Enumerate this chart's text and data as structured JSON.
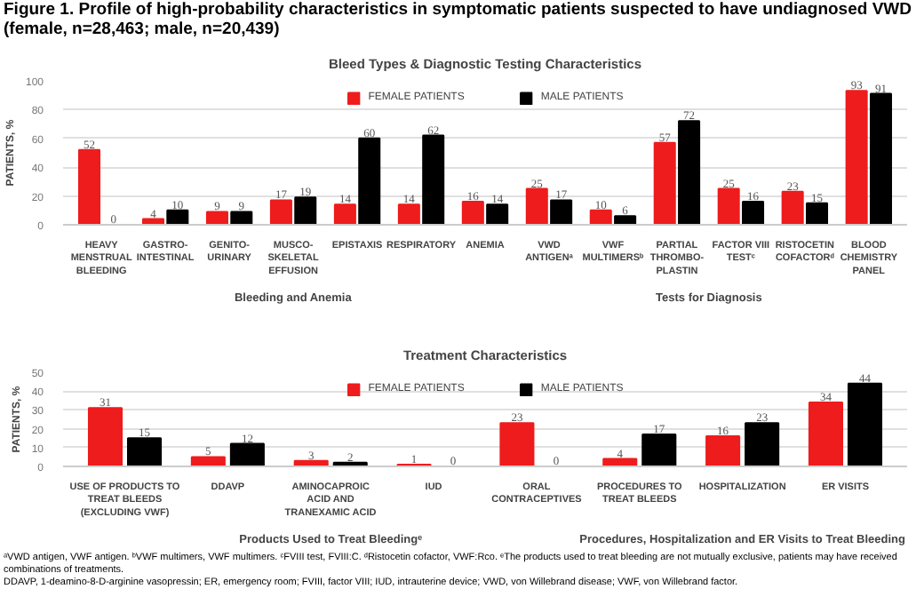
{
  "chart_data": [
    {
      "type": "bar",
      "title": "Bleed Types & Diagnostic Testing Characteristics",
      "ylabel": "PATIENTS, %",
      "categories": [
        "HEAVY\nMENSTRUAL\nBLEEDING",
        "GASTRO-\nINTESTINAL",
        "GENITO-\nURINARY",
        "MUSCO-\nSKELETAL\nEFFUSION",
        "EPISTAXIS",
        "RESPIRATORY",
        "ANEMIA",
        "VWD\nANTIGENᵃ",
        "VWF\nMULTIMERSᵇ",
        "PARTIAL\nTHROMBO-\nPLASTIN",
        "FACTOR VIII\nTESTᶜ",
        "RISTOCETIN\nCOFACTORᵈ",
        "BLOOD\nCHEMISTRY\nPANEL"
      ],
      "series": [
        {
          "name": "FEMALE PATIENTS",
          "color": "#ee1c1c",
          "values": [
            52,
            4,
            9,
            17,
            14,
            14,
            16,
            25,
            10,
            57,
            25,
            23,
            93
          ]
        },
        {
          "name": "MALE PATIENTS",
          "color": "#000000",
          "values": [
            0,
            10,
            9,
            19,
            60,
            62,
            14,
            17,
            6,
            72,
            16,
            15,
            91
          ]
        }
      ],
      "ylim": [
        0,
        100
      ],
      "yticks": [
        0,
        20,
        40,
        60,
        80,
        100
      ],
      "grid": "y",
      "legend": "top",
      "data_labels": true,
      "annotations": [
        "Figure 1. Profile of high-probability characteristics in symptomatic patients suspected to have undiagnosed VWD (female, n=28,463; male, n=20,439)",
        "Bleeding and Anemia",
        "Tests for Diagnosis"
      ]
    },
    {
      "type": "bar",
      "title": "Treatment Characteristics",
      "ylabel": "PATIENTS, %",
      "categories": [
        "USE OF PRODUCTS TO\nTREAT BLEEDS\n(EXCLUDING VWF)",
        "DDAVP",
        "AMINOCAPROIC\nACID AND\nTRANEXAMIC ACID",
        "IUD",
        "ORAL\nCONTRACEPTIVES",
        "PROCEDURES TO\nTREAT BLEEDS",
        "HOSPITALIZATION",
        "ER VISITS"
      ],
      "series": [
        {
          "name": "FEMALE PATIENTS",
          "color": "#ee1c1c",
          "values": [
            31,
            5,
            3,
            1,
            23,
            4,
            16,
            34
          ]
        },
        {
          "name": "MALE PATIENTS",
          "color": "#000000",
          "values": [
            15,
            12,
            2,
            0,
            0,
            17,
            23,
            44
          ]
        }
      ],
      "ylim": [
        0,
        50
      ],
      "yticks": [
        0,
        10,
        20,
        30,
        40,
        50
      ],
      "grid": "y",
      "legend": "top",
      "data_labels": true,
      "annotations": [
        "Products Used to Treat Bleedingᵉ",
        "Procedures, Hospitalization and ER Visits to Treat Bleeding",
        "ᵃVWD antigen, VWF antigen. ᵇVWF multimers, VWF multimers. ᶜFVIII test, FVIII:C. ᵈRistocetin cofactor, VWF:Rco. ᵉThe products used to treat bleeding are not mutually exclusive, patients may have received combinations of treatments.",
        "DDAVP, 1-deamino-8-D-arginine vasopressin; ER, emergency room; FVIII, factor VIII; IUD, intrauterine device; VWD, von Willebrand disease; VWF, von Willebrand factor."
      ]
    }
  ]
}
